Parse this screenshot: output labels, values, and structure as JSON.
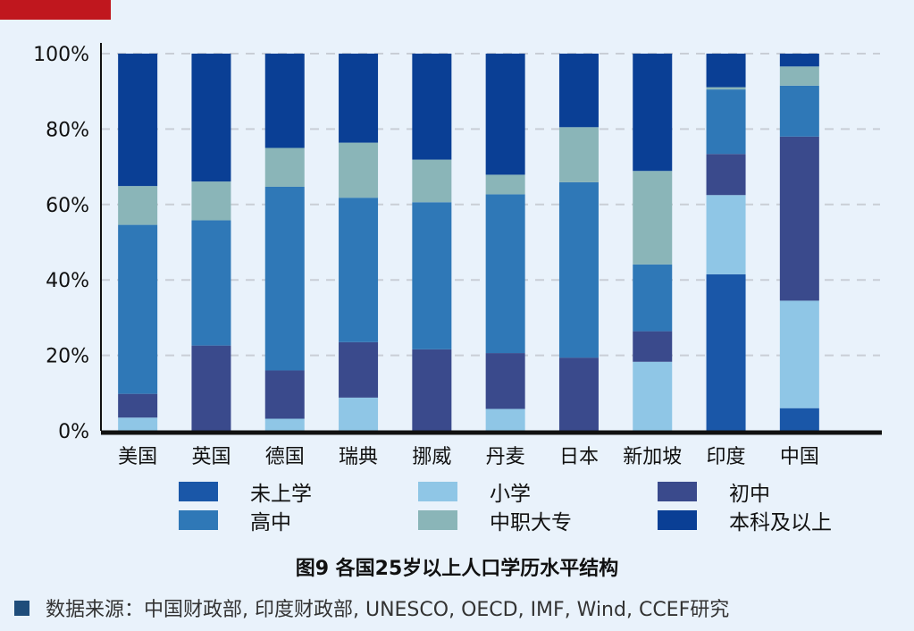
{
  "colors": {
    "red_bar": "#c0171e",
    "未上学": "#1a57a8",
    "小学": "#8fc6e6",
    "初中": "#3a4a8c",
    "高中": "#2f78b7",
    "中职大专": "#8ab5b8",
    "本科及以上": "#0a3f95"
  },
  "legend": [
    {
      "name": "未上学",
      "color": "#1a57a8"
    },
    {
      "name": "小学",
      "color": "#8fc6e6"
    },
    {
      "name": "初中",
      "color": "#3a4a8c"
    },
    {
      "name": "高中",
      "color": "#2f78b7"
    },
    {
      "name": "中职大专",
      "color": "#8ab5b8"
    },
    {
      "name": "本科及以上",
      "color": "#0a3f95"
    }
  ],
  "figure_title": "图9 各国25岁以上人口学历水平结构",
  "source_text": "数据来源：中国财政部, 印度财政部, UNESCO, OECD, IMF, Wind, CCEF研究",
  "chart_data": {
    "type": "bar",
    "stacked": true,
    "categories": [
      "美国",
      "英国",
      "德国",
      "瑞典",
      "挪威",
      "丹麦",
      "日本",
      "新加坡",
      "印度",
      "中国"
    ],
    "yticks": [
      "0%",
      "20%",
      "40%",
      "60%",
      "80%",
      "100%"
    ],
    "ylim": [
      0,
      100
    ],
    "grid": true,
    "legend_position": "bottom",
    "series": [
      {
        "name": "未上学",
        "values": [
          0,
          0,
          0,
          0,
          0,
          0,
          0,
          0,
          41.5,
          6
        ]
      },
      {
        "name": "小学",
        "values": [
          3.5,
          0,
          3.2,
          8.8,
          0,
          5.8,
          0,
          18.3,
          21,
          28.5
        ]
      },
      {
        "name": "初中",
        "values": [
          6.3,
          22.6,
          12.8,
          14.7,
          21.6,
          14.8,
          19.4,
          8.1,
          10.9,
          43.5
        ]
      },
      {
        "name": "高中",
        "values": [
          44.8,
          33.2,
          48.7,
          38.3,
          39.0,
          42.1,
          46.5,
          17.7,
          17.1,
          13.5
        ]
      },
      {
        "name": "中职大专",
        "values": [
          10.3,
          10.3,
          10.3,
          14.6,
          11.3,
          5.2,
          14.6,
          24.8,
          0.6,
          5.1
        ]
      },
      {
        "name": "本科及以上",
        "values": [
          35.1,
          33.9,
          25.0,
          23.6,
          28.1,
          32.1,
          19.5,
          31.1,
          8.9,
          3.4
        ]
      }
    ]
  }
}
